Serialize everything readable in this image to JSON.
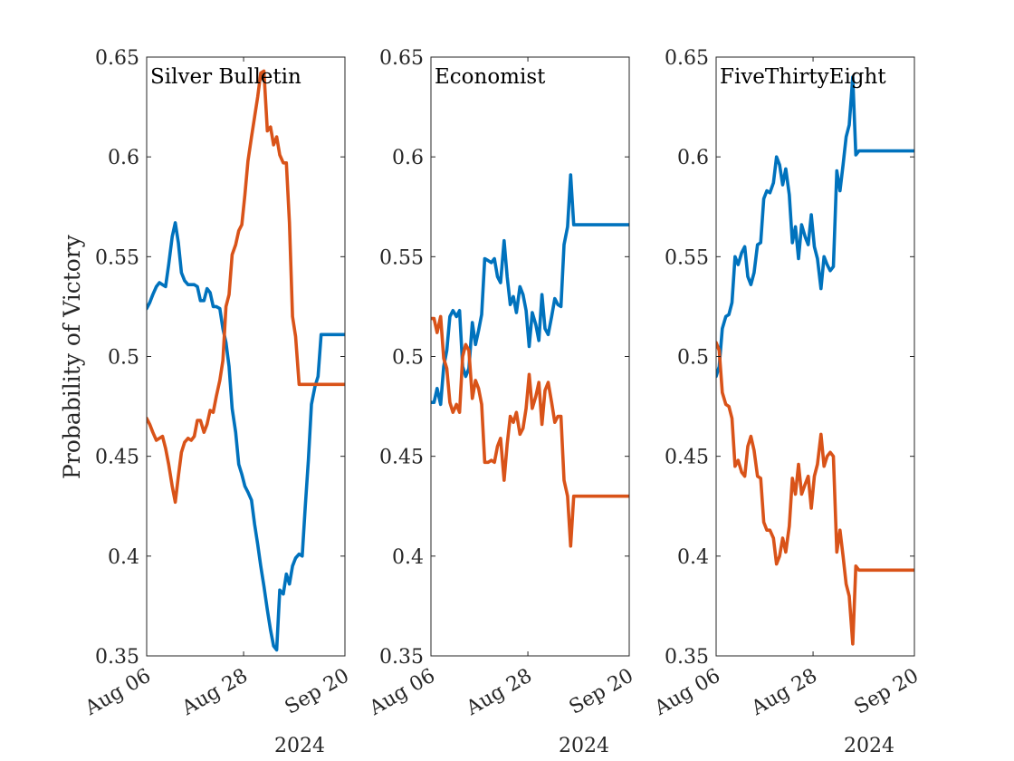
{
  "chart_data": {
    "type": "line",
    "ylabel": "Probability of Victory",
    "ylim": [
      0.35,
      0.65
    ],
    "yticks": [
      "0.35",
      "0.4",
      "0.45",
      "0.5",
      "0.55",
      "0.6",
      "0.65"
    ],
    "xticks": [
      "Aug 06",
      "Aug 28",
      "Sep 20"
    ],
    "xtick_days": [
      0,
      22,
      45
    ],
    "xlim": [
      0,
      45
    ],
    "xsecondary": "2024",
    "grid": false,
    "colors": {
      "blue": "#0072BD",
      "orange": "#D95319"
    },
    "panels": [
      {
        "title": "Silver Bulletin",
        "series": [
          {
            "color": "blue",
            "x": [
              0,
              0.7,
              1.4,
              2.2,
              2.9,
              3.6,
              4.3,
              5,
              5.8,
              6.5,
              7.2,
              7.9,
              8.6,
              9.4,
              10.1,
              10.8,
              11.5,
              12.2,
              13,
              13.7,
              14.4,
              15.1,
              15.8,
              16.6,
              17.3,
              18,
              18.7,
              19.4,
              20.2,
              20.9,
              21.6,
              22.3,
              23,
              23.8,
              24.5,
              25.2,
              25.9,
              26.6,
              27.4,
              28.1,
              28.8,
              29.5,
              30.2,
              31,
              31.7,
              32.4,
              33.1,
              33.8,
              34.6,
              35.3,
              36,
              36.7,
              37.4,
              38.2,
              38.9,
              39.6,
              40.3,
              41,
              41.8,
              42.5,
              43.2,
              43.9,
              44.6,
              45
            ],
            "values": [
              0.524,
              0.527,
              0.531,
              0.535,
              0.537,
              0.536,
              0.535,
              0.546,
              0.56,
              0.567,
              0.557,
              0.542,
              0.538,
              0.536,
              0.536,
              0.536,
              0.535,
              0.528,
              0.528,
              0.534,
              0.532,
              0.525,
              0.525,
              0.524,
              0.514,
              0.507,
              0.495,
              0.474,
              0.462,
              0.446,
              0.441,
              0.435,
              0.432,
              0.428,
              0.416,
              0.406,
              0.395,
              0.385,
              0.373,
              0.363,
              0.355,
              0.353,
              0.383,
              0.381,
              0.391,
              0.386,
              0.395,
              0.399,
              0.401,
              0.4,
              0.425,
              0.448,
              0.476,
              0.485,
              0.49,
              0.511,
              0.511,
              0.511,
              0.511,
              0.511,
              0.511,
              0.511,
              0.511,
              0.511
            ]
          },
          {
            "color": "orange",
            "x": [
              0,
              0.7,
              1.4,
              2.2,
              2.9,
              3.6,
              4.3,
              5,
              5.8,
              6.5,
              7.2,
              7.9,
              8.6,
              9.4,
              10.1,
              10.8,
              11.5,
              12.2,
              13,
              13.7,
              14.4,
              15.1,
              15.8,
              16.6,
              17.3,
              18,
              18.7,
              19.4,
              20.2,
              20.9,
              21.6,
              22.3,
              23,
              23.8,
              24.5,
              25.2,
              25.9,
              26.6,
              27.4,
              28.1,
              28.8,
              29.5,
              30.2,
              31,
              31.7,
              32.4,
              33.1,
              33.8,
              34.6,
              35.3,
              36,
              36.7,
              37.4,
              38.2,
              38.9,
              39.6,
              40.3,
              41,
              41.8,
              42.5,
              43.2,
              43.9,
              44.6,
              45
            ],
            "values": [
              0.469,
              0.466,
              0.462,
              0.458,
              0.459,
              0.46,
              0.454,
              0.446,
              0.435,
              0.427,
              0.44,
              0.452,
              0.457,
              0.459,
              0.458,
              0.46,
              0.468,
              0.468,
              0.462,
              0.466,
              0.473,
              0.472,
              0.48,
              0.488,
              0.498,
              0.525,
              0.531,
              0.551,
              0.556,
              0.563,
              0.566,
              0.581,
              0.598,
              0.61,
              0.62,
              0.63,
              0.642,
              0.643,
              0.613,
              0.615,
              0.606,
              0.61,
              0.601,
              0.597,
              0.597,
              0.567,
              0.52,
              0.51,
              0.486,
              0.486,
              0.486,
              0.486,
              0.486,
              0.486,
              0.486,
              0.486,
              0.486,
              0.486,
              0.486,
              0.486,
              0.486,
              0.486,
              0.486,
              0.486
            ]
          }
        ]
      },
      {
        "title": "Economist",
        "series": [
          {
            "color": "blue",
            "x": [
              0,
              0.7,
              1.4,
              2.2,
              2.9,
              3.6,
              4.3,
              5,
              5.8,
              6.5,
              7.2,
              7.9,
              8.6,
              9.4,
              10.1,
              10.8,
              11.5,
              12.2,
              13,
              13.7,
              14.4,
              15.1,
              15.8,
              16.6,
              17.3,
              18,
              18.7,
              19.4,
              20.2,
              20.9,
              21.6,
              22.3,
              23,
              23.8,
              24.5,
              25.2,
              25.9,
              26.6,
              27.4,
              28.1,
              28.8,
              29.5,
              30.2,
              31,
              31.7,
              32.4,
              33.1,
              33.8,
              34.6,
              35.3,
              36,
              36.7,
              37.4,
              38.2,
              38.9,
              39.6,
              40.3,
              41,
              41.8,
              42.5,
              43.2,
              43.9,
              44.6,
              45
            ],
            "values": [
              0.477,
              0.477,
              0.484,
              0.476,
              0.495,
              0.503,
              0.52,
              0.523,
              0.52,
              0.523,
              0.495,
              0.49,
              0.494,
              0.517,
              0.506,
              0.513,
              0.521,
              0.549,
              0.548,
              0.547,
              0.549,
              0.54,
              0.537,
              0.558,
              0.54,
              0.526,
              0.53,
              0.522,
              0.535,
              0.531,
              0.523,
              0.505,
              0.522,
              0.516,
              0.508,
              0.531,
              0.514,
              0.511,
              0.52,
              0.529,
              0.526,
              0.525,
              0.556,
              0.565,
              0.591,
              0.566,
              0.566,
              0.566,
              0.566,
              0.566,
              0.566,
              0.566,
              0.566,
              0.566,
              0.566,
              0.566,
              0.566,
              0.566,
              0.566,
              0.566,
              0.566,
              0.566,
              0.566,
              0.566
            ]
          },
          {
            "color": "orange",
            "x": [
              0,
              0.7,
              1.4,
              2.2,
              2.9,
              3.6,
              4.3,
              5,
              5.8,
              6.5,
              7.2,
              7.9,
              8.6,
              9.4,
              10.1,
              10.8,
              11.5,
              12.2,
              13,
              13.7,
              14.4,
              15.1,
              15.8,
              16.6,
              17.3,
              18,
              18.7,
              19.4,
              20.2,
              20.9,
              21.6,
              22.3,
              23,
              23.8,
              24.5,
              25.2,
              25.9,
              26.6,
              27.4,
              28.1,
              28.8,
              29.5,
              30.2,
              31,
              31.7,
              32.4,
              33.1,
              33.8,
              34.6,
              35.3,
              36,
              36.7,
              37.4,
              38.2,
              38.9,
              39.6,
              40.3,
              41,
              41.8,
              42.5,
              43.2,
              43.9,
              44.6,
              45
            ],
            "values": [
              0.519,
              0.519,
              0.512,
              0.52,
              0.499,
              0.494,
              0.477,
              0.472,
              0.476,
              0.472,
              0.5,
              0.506,
              0.503,
              0.479,
              0.488,
              0.484,
              0.476,
              0.447,
              0.447,
              0.448,
              0.447,
              0.455,
              0.459,
              0.438,
              0.456,
              0.47,
              0.467,
              0.472,
              0.461,
              0.464,
              0.474,
              0.491,
              0.474,
              0.48,
              0.487,
              0.466,
              0.483,
              0.487,
              0.477,
              0.467,
              0.47,
              0.47,
              0.438,
              0.43,
              0.405,
              0.43,
              0.43,
              0.43,
              0.43,
              0.43,
              0.43,
              0.43,
              0.43,
              0.43,
              0.43,
              0.43,
              0.43,
              0.43,
              0.43,
              0.43,
              0.43,
              0.43,
              0.43,
              0.43
            ]
          }
        ]
      },
      {
        "title": "FiveThirtyEight",
        "series": [
          {
            "color": "blue",
            "x": [
              0,
              0.7,
              1.4,
              2.2,
              2.9,
              3.6,
              4.3,
              5,
              5.8,
              6.5,
              7.2,
              7.9,
              8.6,
              9.4,
              10.1,
              10.8,
              11.5,
              12.2,
              13,
              13.7,
              14.4,
              15.1,
              15.8,
              16.6,
              17.3,
              18,
              18.7,
              19.4,
              20.2,
              20.9,
              21.6,
              22.3,
              23,
              23.8,
              24.5,
              25.2,
              25.9,
              26.6,
              27.4,
              28.1,
              28.8,
              29.5,
              30.2,
              31,
              31.7,
              32.4,
              33.1,
              33.8,
              34.6,
              35.3,
              36,
              36.7,
              37.4,
              38.2,
              38.9,
              39.6,
              40.3,
              41,
              41.8,
              42.5,
              43.2,
              43.9,
              44.6,
              45
            ],
            "values": [
              0.49,
              0.495,
              0.514,
              0.52,
              0.521,
              0.527,
              0.55,
              0.546,
              0.552,
              0.555,
              0.54,
              0.536,
              0.542,
              0.556,
              0.557,
              0.579,
              0.583,
              0.582,
              0.587,
              0.6,
              0.596,
              0.586,
              0.594,
              0.581,
              0.557,
              0.565,
              0.549,
              0.566,
              0.56,
              0.556,
              0.571,
              0.555,
              0.549,
              0.534,
              0.55,
              0.546,
              0.543,
              0.545,
              0.593,
              0.583,
              0.596,
              0.61,
              0.616,
              0.64,
              0.601,
              0.603,
              0.603,
              0.603,
              0.603,
              0.603,
              0.603,
              0.603,
              0.603,
              0.603,
              0.603,
              0.603,
              0.603,
              0.603,
              0.603,
              0.603,
              0.603,
              0.603,
              0.603,
              0.603
            ]
          },
          {
            "color": "orange",
            "x": [
              0,
              0.7,
              1.4,
              2.2,
              2.9,
              3.6,
              4.3,
              5,
              5.8,
              6.5,
              7.2,
              7.9,
              8.6,
              9.4,
              10.1,
              10.8,
              11.5,
              12.2,
              13,
              13.7,
              14.4,
              15.1,
              15.8,
              16.6,
              17.3,
              18,
              18.7,
              19.4,
              20.2,
              20.9,
              21.6,
              22.3,
              23,
              23.8,
              24.5,
              25.2,
              25.9,
              26.6,
              27.4,
              28.1,
              28.8,
              29.5,
              30.2,
              31,
              31.7,
              32.4,
              33.1,
              33.8,
              34.6,
              35.3,
              36,
              36.7,
              37.4,
              38.2,
              38.9,
              39.6,
              40.3,
              41,
              41.8,
              42.5,
              43.2,
              43.9,
              44.6,
              45
            ],
            "values": [
              0.507,
              0.503,
              0.482,
              0.476,
              0.475,
              0.469,
              0.445,
              0.448,
              0.442,
              0.44,
              0.455,
              0.46,
              0.453,
              0.44,
              0.439,
              0.417,
              0.413,
              0.413,
              0.409,
              0.396,
              0.4,
              0.409,
              0.402,
              0.415,
              0.439,
              0.431,
              0.446,
              0.431,
              0.436,
              0.44,
              0.424,
              0.44,
              0.446,
              0.461,
              0.445,
              0.45,
              0.452,
              0.45,
              0.402,
              0.413,
              0.4,
              0.386,
              0.38,
              0.356,
              0.395,
              0.393,
              0.393,
              0.393,
              0.393,
              0.393,
              0.393,
              0.393,
              0.393,
              0.393,
              0.393,
              0.393,
              0.393,
              0.393,
              0.393,
              0.393,
              0.393,
              0.393,
              0.393,
              0.393
            ]
          }
        ]
      }
    ]
  }
}
